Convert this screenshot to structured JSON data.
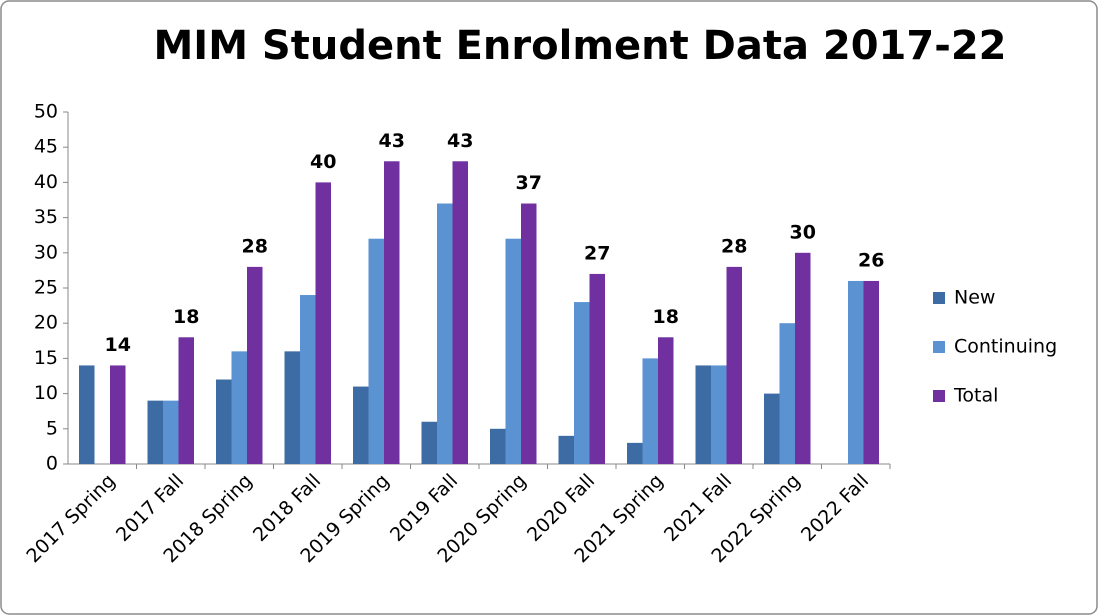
{
  "chart_data": {
    "type": "bar",
    "title": "MIM Student Enrolment Data 2017-22",
    "categories": [
      "2017 Spring",
      "2017 Fall",
      "2018 Spring",
      "2018 Fall",
      "2019 Spring",
      "2019 Fall",
      "2020 Spring",
      "2020 Fall",
      "2021 Spring",
      "2021 Fall",
      "2022 Spring",
      "2022 Fall"
    ],
    "series": [
      {
        "name": "New",
        "color": "#3d6ba3",
        "values": [
          14,
          9,
          12,
          16,
          11,
          6,
          5,
          4,
          3,
          14,
          10,
          0
        ]
      },
      {
        "name": "Continuing",
        "color": "#5a92d2",
        "values": [
          0,
          9,
          16,
          24,
          32,
          37,
          32,
          23,
          15,
          14,
          20,
          26
        ]
      },
      {
        "name": "Total",
        "color": "#7030a0",
        "values": [
          14,
          18,
          28,
          40,
          43,
          43,
          37,
          27,
          18,
          28,
          30,
          26
        ],
        "show_labels": true
      }
    ],
    "ylim": [
      0,
      50
    ],
    "yticks": [
      0,
      5,
      10,
      15,
      20,
      25,
      30,
      35,
      40,
      45,
      50
    ],
    "grid": false,
    "legend": "right"
  }
}
